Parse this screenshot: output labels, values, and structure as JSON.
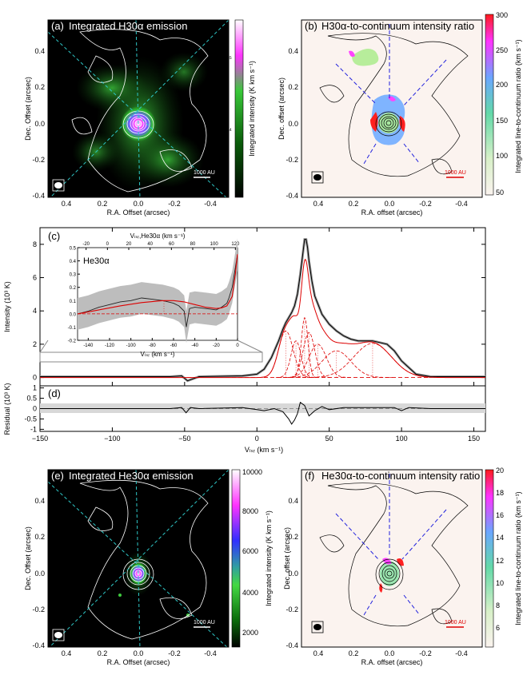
{
  "panels": {
    "a": {
      "label": "(a)",
      "title": "Integrated H30α emission",
      "colorbar_label": "Integrated intensity (K km s⁻¹)",
      "cb_ticks": [
        "10⁵",
        "10⁴"
      ],
      "scale": "1000 AU"
    },
    "b": {
      "label": "(b)",
      "title": "H30α-to-continuum intensity ratio",
      "colorbar_label": "Integrated line-to-continuum ratio (km s⁻¹)",
      "cb_ticks": [
        "300",
        "250",
        "200",
        "150",
        "100",
        "50"
      ],
      "scale": "1000 AU"
    },
    "e": {
      "label": "(e)",
      "title": "Integrated He30α emission",
      "colorbar_label": "Integrated intensity (K km s⁻¹)",
      "cb_ticks": [
        "10000",
        "8000",
        "6000",
        "4000",
        "2000"
      ],
      "scale": "1000 AU"
    },
    "f": {
      "label": "(f)",
      "title": "He30α-to-continuum intensity ratio",
      "colorbar_label": "Integrated line-to-continuum ratio (km s⁻¹)",
      "cb_ticks": [
        "20",
        "18",
        "16",
        "14",
        "12",
        "10",
        "8",
        "6"
      ],
      "scale": "1000 AU"
    }
  },
  "map_axes": {
    "x_ticks": [
      "0.4",
      "0.2",
      "0.0",
      "-0.2",
      "-0.4"
    ],
    "y_ticks": [
      "0.4",
      "0.2",
      "0.0",
      "-0.2",
      "-0.4"
    ],
    "xlabel_a": "R.A. Offset (arcsec)",
    "ylabel_a": "Dec. Offset (arcsec)",
    "xlabel_b": "R.A. offset (arcsec)",
    "ylabel_b": "Dec. offset (arcsec)"
  },
  "spectrum": {
    "label_c": "(c)",
    "label_d": "(d)",
    "ylabel_c": "Intensity (10³ K)",
    "ylabel_d": "Residual (10³ K)",
    "xlabel": "Vₗₛᵣ (km s⁻¹)",
    "inset_title": "He30α",
    "inset_top_label": "Vₗₛᵣ,He30α (km s⁻¹)",
    "inset_bottom_label": "Vₗₛᵣ (km s⁻¹)"
  },
  "chart_data": [
    {
      "type": "line",
      "title": "(c)",
      "xlabel": "Vlsr (km s-1)",
      "ylabel": "Intensity (10^3 K)",
      "xlim": [
        -150,
        158
      ],
      "ylim": [
        -0.5,
        9
      ],
      "x_ticks": [
        -150,
        -100,
        -50,
        0,
        50,
        100,
        150
      ],
      "y_ticks": [
        0,
        2,
        4,
        6,
        8
      ],
      "series": [
        {
          "name": "observed",
          "x": [
            -150,
            -60,
            -52,
            -48,
            -40,
            -10,
            0,
            5,
            10,
            15,
            18,
            20,
            22,
            24,
            26,
            28,
            30,
            32,
            33,
            34,
            35,
            36,
            38,
            40,
            45,
            50,
            55,
            60,
            65,
            70,
            75,
            80,
            85,
            90,
            95,
            100,
            110,
            120,
            130,
            158
          ],
          "y": [
            0.05,
            0.05,
            0.1,
            -0.2,
            0.05,
            0.1,
            0.2,
            0.5,
            1.2,
            2.2,
            2.9,
            3.3,
            3.6,
            3.9,
            4.3,
            5.0,
            6.2,
            7.6,
            8.3,
            8.3,
            7.8,
            7.0,
            5.8,
            4.9,
            3.8,
            3.2,
            2.8,
            2.5,
            2.3,
            2.2,
            2.2,
            2.2,
            2.1,
            2.0,
            1.6,
            1.0,
            0.2,
            0.05,
            0.05,
            0.05
          ]
        },
        {
          "name": "gauss-1",
          "center": 20,
          "peak": 2.8,
          "sigma": 5
        },
        {
          "name": "gauss-2",
          "center": 27,
          "peak": 2.2,
          "sigma": 3.5
        },
        {
          "name": "gauss-3",
          "center": 33,
          "peak": 3.6,
          "sigma": 2.3
        },
        {
          "name": "gauss-4",
          "center": 36,
          "peak": 2.7,
          "sigma": 4
        },
        {
          "name": "gauss-5",
          "center": 42,
          "peak": 2.0,
          "sigma": 6
        },
        {
          "name": "gauss-6",
          "center": 55,
          "peak": 1.6,
          "sigma": 10
        },
        {
          "name": "gauss-7",
          "center": 80,
          "peak": 2.05,
          "sigma": 13
        }
      ]
    },
    {
      "type": "line",
      "title": "He30α inset",
      "xlabel": "Vlsr (km s-1)",
      "ylabel": "",
      "xlim": [
        -150,
        0
      ],
      "ylim": [
        -0.2,
        0.5
      ],
      "x_ticks": [
        -140,
        -120,
        -100,
        -80,
        -60,
        -40,
        -20,
        0
      ],
      "top_ticks": [
        -20,
        0,
        20,
        40,
        60,
        80,
        100,
        120
      ],
      "y_ticks": [
        -0.2,
        -0.1,
        0.0,
        0.1,
        0.2,
        0.3,
        0.4,
        0.5
      ],
      "series": [
        {
          "name": "observed",
          "x": [
            -150,
            -140,
            -130,
            -120,
            -110,
            -100,
            -90,
            -80,
            -70,
            -60,
            -55,
            -50,
            -48,
            -45,
            -40,
            -30,
            -20,
            -15,
            -10,
            -8,
            -5,
            -3,
            -1,
            0
          ],
          "y": [
            0.0,
            0.02,
            0.05,
            0.07,
            0.09,
            0.1,
            0.12,
            0.11,
            0.1,
            0.08,
            0.06,
            0.02,
            -0.1,
            0.04,
            0.05,
            0.04,
            0.03,
            0.05,
            0.08,
            0.12,
            0.2,
            0.3,
            0.4,
            0.45
          ]
        },
        {
          "name": "fit",
          "x": [
            -150,
            -130,
            -110,
            -90,
            -70,
            -60,
            -50,
            -40,
            -30,
            -20,
            -15,
            -10,
            -5,
            -2,
            0
          ],
          "y": [
            0.0,
            0.03,
            0.06,
            0.085,
            0.1,
            0.1,
            0.09,
            0.07,
            0.05,
            0.04,
            0.045,
            0.06,
            0.13,
            0.3,
            0.45
          ]
        }
      ]
    },
    {
      "type": "line",
      "title": "(d)",
      "xlabel": "Vlsr (km s-1)",
      "ylabel": "Residual (10^3 K)",
      "xlim": [
        -150,
        158
      ],
      "ylim": [
        -1.1,
        1.1
      ],
      "y_ticks": [
        1.0,
        0.5,
        0.0,
        -0.5,
        -1.0
      ],
      "series": [
        {
          "name": "residual",
          "x": [
            -150,
            -60,
            -52,
            -49,
            -46,
            -40,
            -10,
            0,
            5,
            12,
            18,
            22,
            24,
            26,
            28,
            30,
            33,
            36,
            40,
            45,
            50,
            60,
            80,
            95,
            100,
            105,
            120,
            158
          ],
          "y": [
            0.0,
            0.0,
            0.05,
            -0.2,
            0.05,
            0.0,
            0.05,
            -0.05,
            -0.1,
            0.0,
            -0.15,
            -0.5,
            -0.75,
            -0.55,
            -0.25,
            0.3,
            0.15,
            -0.35,
            -0.1,
            0.1,
            -0.05,
            0.05,
            0.05,
            0.05,
            -0.1,
            0.05,
            0.0,
            0.0
          ]
        }
      ]
    }
  ]
}
